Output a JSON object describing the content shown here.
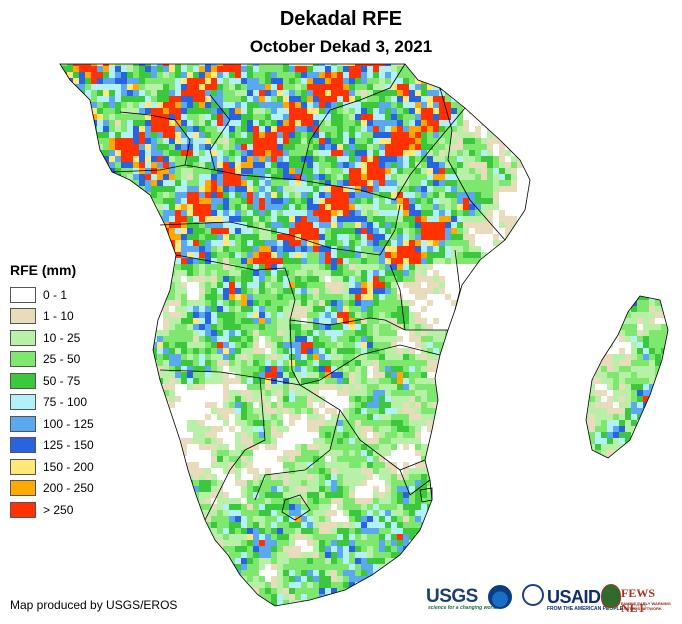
{
  "title": "Dekadal RFE",
  "subtitle": "October Dekad 3, 2021",
  "legend": {
    "title": "RFE (mm)",
    "items": [
      {
        "label": "0 - 1",
        "color": "#ffffff"
      },
      {
        "label": "1 - 10",
        "color": "#e8dcbc"
      },
      {
        "label": "10 - 25",
        "color": "#b8f0a8"
      },
      {
        "label": "25 - 50",
        "color": "#7ee86e"
      },
      {
        "label": "50 - 75",
        "color": "#3cc83c"
      },
      {
        "label": "75 - 100",
        "color": "#b4f0f8"
      },
      {
        "label": "100 - 125",
        "color": "#5aa8f0"
      },
      {
        "label": "125 - 150",
        "color": "#2864e0"
      },
      {
        "label": "150 - 200",
        "color": "#ffe878"
      },
      {
        "label": "200 - 250",
        "color": "#ffa800"
      },
      {
        "label": "> 250",
        "color": "#ff3200"
      }
    ]
  },
  "credit": "Map produced by USGS/EROS",
  "logos": {
    "usgs": "USGS",
    "usgs_tagline": "science for a changing world",
    "usaid": "USAID",
    "usaid_tagline": "FROM THE AMERICAN PEOPLE",
    "fews": "FEWS NET",
    "fews_tagline": "FAMINE EARLY WARNING SYSTEMS NETWORK"
  }
}
